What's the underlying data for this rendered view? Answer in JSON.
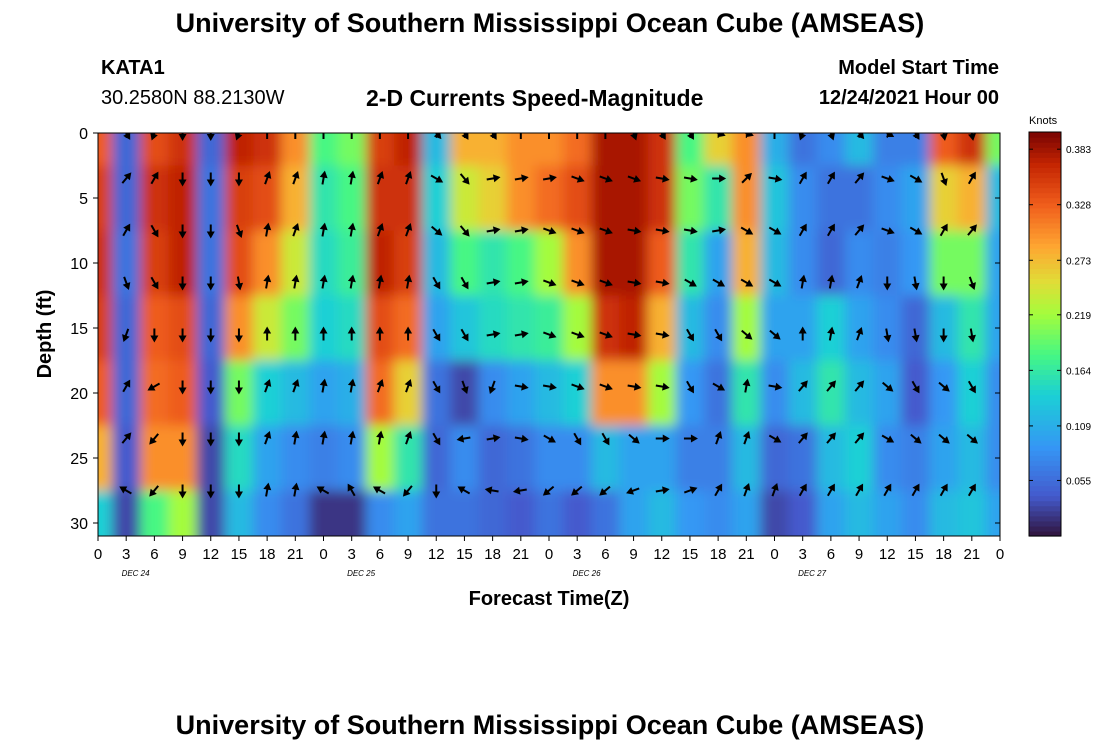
{
  "header": {
    "title": "University of Southern Mississippi Ocean Cube (AMSEAS)",
    "station_id": "KATA1",
    "coordinates": "30.2580N  88.2130W",
    "plot_title": "2-D Currents Speed-Magnitude",
    "model_start_label": "Model Start Time",
    "model_start_value": "12/24/2021 Hour 00",
    "footer_title": "University of Southern Mississippi Ocean Cube (AMSEAS)"
  },
  "chart_data": {
    "type": "heatmap",
    "title": "2-D Currents Speed-Magnitude",
    "xlabel": "Forecast Time(Z)",
    "ylabel": "Depth (ft)",
    "x_range_hours": [
      0,
      96
    ],
    "ylim": [
      0,
      31
    ],
    "y_inverted": true,
    "x_tick_labels": [
      "0",
      "3",
      "6",
      "9",
      "12",
      "15",
      "18",
      "21",
      "0",
      "3",
      "6",
      "9",
      "12",
      "15",
      "18",
      "21",
      "0",
      "3",
      "6",
      "9",
      "12",
      "15",
      "18",
      "21",
      "0",
      "3",
      "6",
      "9",
      "12",
      "15",
      "18",
      "21",
      "0"
    ],
    "date_labels": [
      {
        "hour": 4,
        "label": "DEC 24"
      },
      {
        "hour": 28,
        "label": "DEC 25"
      },
      {
        "hour": 52,
        "label": "DEC 26"
      },
      {
        "hour": 76,
        "label": "DEC 27"
      }
    ],
    "y_ticks": [
      0,
      5,
      10,
      15,
      20,
      25,
      30
    ],
    "colorbar": {
      "unit": "Knots",
      "min": 0.0,
      "max": 0.4,
      "tick_values": [
        0.383,
        0.328,
        0.273,
        0.219,
        0.164,
        0.109,
        0.055
      ]
    },
    "speed_knots": {
      "hours": [
        0,
        3,
        6,
        9,
        12,
        15,
        18,
        21,
        24,
        27,
        30,
        33,
        36,
        39,
        42,
        45,
        48,
        51,
        54,
        57,
        60,
        63,
        66,
        69,
        72,
        75,
        78,
        81,
        84,
        87,
        90,
        93,
        96
      ],
      "depths_ft": [
        0,
        5,
        10,
        15,
        20,
        25,
        30
      ],
      "values": [
        [
          0.33,
          0.05,
          0.34,
          0.36,
          0.05,
          0.37,
          0.36,
          0.3,
          0.18,
          0.2,
          0.35,
          0.37,
          0.12,
          0.28,
          0.28,
          0.3,
          0.3,
          0.32,
          0.38,
          0.38,
          0.36,
          0.18,
          0.26,
          0.3,
          0.11,
          0.06,
          0.08,
          0.12,
          0.07,
          0.07,
          0.33,
          0.36,
          0.2
        ],
        [
          0.35,
          0.05,
          0.36,
          0.37,
          0.06,
          0.35,
          0.34,
          0.28,
          0.16,
          0.18,
          0.36,
          0.36,
          0.14,
          0.24,
          0.26,
          0.3,
          0.32,
          0.34,
          0.38,
          0.38,
          0.36,
          0.2,
          0.16,
          0.3,
          0.13,
          0.08,
          0.06,
          0.06,
          0.08,
          0.1,
          0.26,
          0.28,
          0.12
        ],
        [
          0.36,
          0.06,
          0.35,
          0.37,
          0.06,
          0.34,
          0.3,
          0.24,
          0.15,
          0.17,
          0.37,
          0.35,
          0.12,
          0.18,
          0.16,
          0.18,
          0.22,
          0.3,
          0.38,
          0.38,
          0.33,
          0.16,
          0.1,
          0.28,
          0.12,
          0.08,
          0.05,
          0.08,
          0.07,
          0.09,
          0.2,
          0.2,
          0.1
        ],
        [
          0.35,
          0.05,
          0.33,
          0.34,
          0.05,
          0.3,
          0.24,
          0.2,
          0.14,
          0.15,
          0.34,
          0.32,
          0.1,
          0.13,
          0.15,
          0.16,
          0.17,
          0.22,
          0.36,
          0.37,
          0.28,
          0.12,
          0.08,
          0.22,
          0.1,
          0.1,
          0.14,
          0.1,
          0.08,
          0.05,
          0.12,
          0.16,
          0.1
        ],
        [
          0.33,
          0.05,
          0.32,
          0.33,
          0.04,
          0.2,
          0.14,
          0.12,
          0.1,
          0.11,
          0.32,
          0.26,
          0.06,
          0.03,
          0.08,
          0.1,
          0.12,
          0.14,
          0.3,
          0.3,
          0.22,
          0.09,
          0.06,
          0.16,
          0.08,
          0.12,
          0.16,
          0.12,
          0.1,
          0.04,
          0.09,
          0.14,
          0.08
        ],
        [
          0.28,
          0.04,
          0.3,
          0.3,
          0.03,
          0.15,
          0.1,
          0.08,
          0.07,
          0.08,
          0.22,
          0.16,
          0.05,
          0.08,
          0.05,
          0.06,
          0.08,
          0.08,
          0.12,
          0.1,
          0.1,
          0.07,
          0.07,
          0.12,
          0.05,
          0.06,
          0.12,
          0.14,
          0.08,
          0.07,
          0.1,
          0.12,
          0.08
        ],
        [
          0.14,
          0.03,
          0.18,
          0.22,
          0.03,
          0.12,
          0.08,
          0.06,
          0.02,
          0.02,
          0.08,
          0.1,
          0.06,
          0.06,
          0.05,
          0.04,
          0.06,
          0.04,
          0.06,
          0.1,
          0.12,
          0.09,
          0.08,
          0.1,
          0.03,
          0.04,
          0.1,
          0.12,
          0.1,
          0.08,
          0.12,
          0.13,
          0.1
        ]
      ]
    },
    "direction_deg": {
      "hours": [
        3,
        6,
        9,
        12,
        15,
        18,
        21,
        24,
        27,
        30,
        33,
        36,
        39,
        42,
        45,
        48,
        51,
        54,
        57,
        60,
        63,
        66,
        69,
        72,
        75,
        78,
        81,
        84,
        87,
        90,
        93
      ],
      "depths_ft": [
        0,
        3.5,
        7.5,
        11.5,
        15.5,
        19.5,
        23.5,
        27.5
      ],
      "values": [
        [
          150,
          200,
          180,
          180,
          200,
          0,
          0,
          0,
          0,
          0,
          0,
          140,
          150,
          150,
          0,
          0,
          0,
          0,
          160,
          150,
          150,
          110,
          110,
          0,
          200,
          160,
          140,
          120,
          150,
          170,
          170
        ],
        [
          40,
          30,
          180,
          180,
          180,
          20,
          20,
          10,
          10,
          20,
          20,
          120,
          140,
          80,
          80,
          80,
          110,
          110,
          110,
          100,
          100,
          90,
          45,
          100,
          30,
          30,
          40,
          110,
          120,
          160,
          30
        ],
        [
          30,
          150,
          180,
          180,
          160,
          10,
          20,
          10,
          10,
          20,
          20,
          130,
          140,
          80,
          80,
          110,
          110,
          110,
          100,
          100,
          100,
          80,
          120,
          120,
          30,
          30,
          40,
          110,
          120,
          30,
          40
        ],
        [
          160,
          150,
          180,
          180,
          170,
          10,
          10,
          10,
          10,
          10,
          10,
          150,
          150,
          80,
          80,
          110,
          110,
          110,
          100,
          100,
          120,
          120,
          120,
          120,
          10,
          10,
          20,
          180,
          170,
          180,
          160
        ],
        [
          200,
          180,
          180,
          180,
          180,
          0,
          0,
          0,
          0,
          0,
          0,
          150,
          150,
          80,
          80,
          110,
          110,
          110,
          100,
          100,
          150,
          150,
          130,
          130,
          0,
          10,
          20,
          170,
          170,
          180,
          170
        ],
        [
          30,
          240,
          180,
          180,
          180,
          20,
          20,
          10,
          10,
          20,
          20,
          150,
          160,
          200,
          100,
          100,
          110,
          110,
          100,
          100,
          150,
          120,
          10,
          100,
          40,
          40,
          40,
          130,
          150,
          130,
          150
        ],
        [
          40,
          220,
          180,
          180,
          180,
          20,
          10,
          10,
          10,
          10,
          20,
          150,
          260,
          80,
          100,
          120,
          150,
          150,
          130,
          90,
          90,
          20,
          20,
          120,
          40,
          40,
          40,
          120,
          130,
          130,
          130
        ],
        [
          300,
          220,
          180,
          180,
          180,
          10,
          10,
          300,
          330,
          300,
          220,
          180,
          300,
          280,
          260,
          230,
          230,
          230,
          250,
          80,
          70,
          30,
          20,
          20,
          30,
          30,
          30,
          30,
          30,
          30,
          30
        ]
      ]
    }
  }
}
